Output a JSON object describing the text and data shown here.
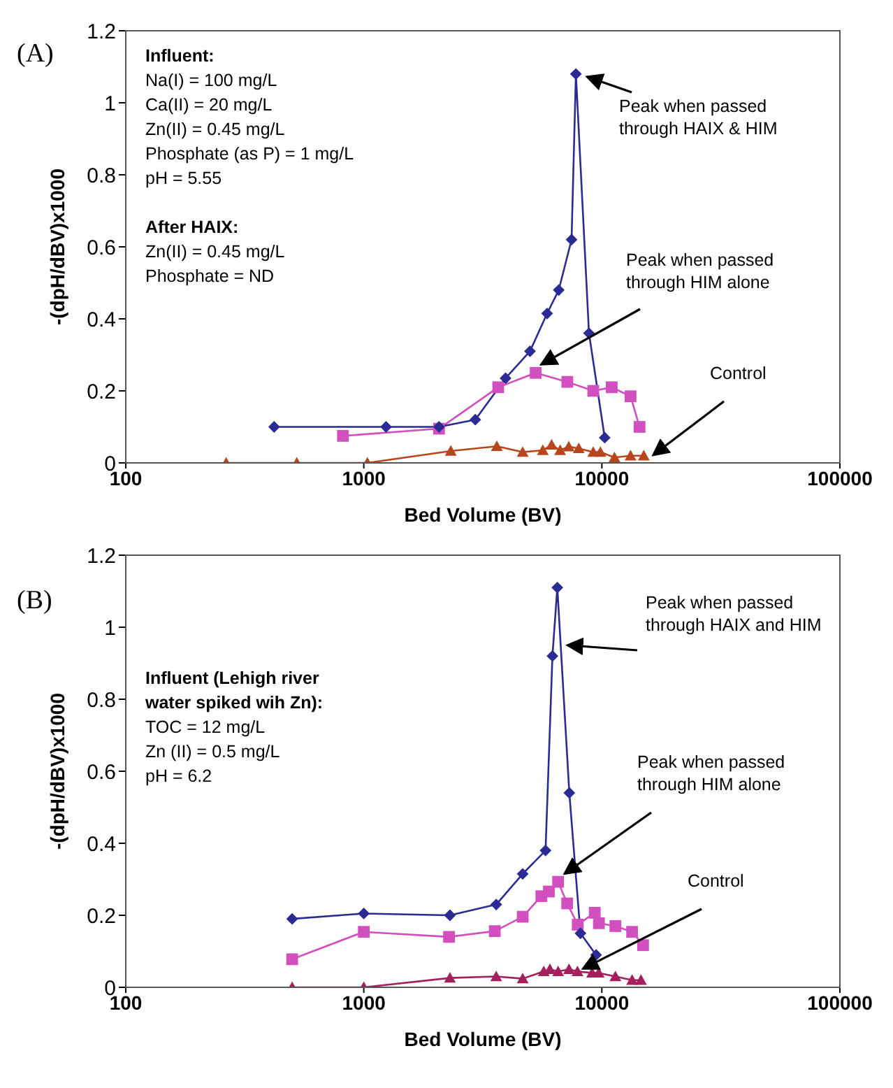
{
  "chart_data": [
    {
      "type": "line",
      "title": "(A)",
      "xlabel": "Bed Volume (BV)",
      "ylabel": "-(dpH/dBV)x1000",
      "log": "x",
      "grid": false,
      "legend": false,
      "xlim": [
        100,
        100000
      ],
      "xticks": [
        100,
        1000,
        10000,
        100000
      ],
      "ylim": [
        0,
        1.2
      ],
      "yticks": [
        0,
        0.2,
        0.4,
        0.6,
        0.8,
        1,
        1.2
      ],
      "annotations": [
        "Influent:\nNa(I) = 100 mg/L\nCa(II) = 20 mg/L\nZn(II) = 0.45 mg/L\nPhosphate (as P) = 1 mg/L\npH = 5.55\n\nAfter HAIX:\nZn(II) = 0.45 mg/L\nPhosphate = ND",
        {
          "text": "Peak when passed\nthrough HAIX & HIM",
          "x": 7780,
          "y": 1.08
        },
        {
          "text": "Peak when passed\nthrough HIM alone",
          "x": 5270,
          "y": 0.25
        },
        {
          "text": "Control",
          "x": 16000,
          "y": 0.01
        }
      ],
      "series": [
        {
          "color": "#2b2b94",
          "marker": "diamond",
          "x": [
            420,
            1240,
            2070,
            2940,
            3940,
            4990,
            5890,
            6590,
            7460,
            7780,
            8830,
            10280
          ],
          "values": [
            0.1,
            0.1,
            0.1,
            0.12,
            0.235,
            0.31,
            0.415,
            0.48,
            0.62,
            1.08,
            0.36,
            0.07
          ]
        },
        {
          "color": "#d24fc0",
          "marker": "square",
          "x": [
            817,
            2070,
            3670,
            5270,
            7160,
            9200,
            11000,
            13200,
            14400
          ],
          "values": [
            0.075,
            0.095,
            0.21,
            0.25,
            0.225,
            0.2,
            0.21,
            0.185,
            0.1
          ]
        },
        {
          "color": "#b8461c",
          "marker": "triangle",
          "x": [
            264,
            523,
            1035,
            2320,
            3620,
            4650,
            5650,
            6150,
            6680,
            7260,
            8000,
            9200,
            9860,
            11300,
            13200,
            15000
          ],
          "values": [
            0,
            0,
            0,
            0.033,
            0.046,
            0.03,
            0.035,
            0.05,
            0.035,
            0.045,
            0.04,
            0.03,
            0.03,
            0.015,
            0.02,
            0.02
          ]
        }
      ]
    },
    {
      "type": "line",
      "title": "(B)",
      "xlabel": "Bed Volume (BV)",
      "ylabel": "-(dpH/dBV)x1000",
      "log": "x",
      "grid": false,
      "legend": false,
      "xlim": [
        100,
        100000
      ],
      "xticks": [
        100,
        1000,
        10000,
        100000
      ],
      "ylim": [
        0,
        1.2
      ],
      "yticks": [
        0,
        0.2,
        0.4,
        0.6,
        0.8,
        1,
        1.2
      ],
      "annotations": [
        "Influent (Lehigh river\nwater spiked wih Zn):\nTOC = 12 mg/L\nZn (II) = 0.5 mg/L\npH = 6.2",
        {
          "text": "Peak when passed\nthrough HAIX and HIM",
          "x": 6800,
          "y": 0.95
        },
        {
          "text": "Peak when passed\nthrough HIM alone",
          "x": 6700,
          "y": 0.3
        },
        {
          "text": "Control",
          "x": 8000,
          "y": 0.04
        }
      ],
      "series": [
        {
          "color": "#2b2b94",
          "marker": "diamond",
          "x": [
            500,
            1000,
            2300,
            3600,
            4650,
            5800,
            6200,
            6500,
            7300,
            8130,
            9460
          ],
          "values": [
            0.19,
            0.205,
            0.2,
            0.23,
            0.315,
            0.38,
            0.92,
            1.11,
            0.54,
            0.15,
            0.09
          ]
        },
        {
          "color": "#d24fc0",
          "marker": "square",
          "x": [
            500,
            1000,
            2280,
            3550,
            4650,
            5570,
            5990,
            6550,
            7150,
            7920,
            9340,
            9720,
            11400,
            13400,
            14900
          ],
          "values": [
            0.078,
            0.154,
            0.14,
            0.156,
            0.196,
            0.253,
            0.266,
            0.293,
            0.233,
            0.174,
            0.207,
            0.178,
            0.17,
            0.154,
            0.117
          ]
        },
        {
          "color": "#a3205c",
          "marker": "triangle",
          "x": [
            500,
            1000,
            2300,
            3600,
            4650,
            5700,
            6050,
            6550,
            7280,
            7900,
            9100,
            9700,
            11400,
            13400,
            14600
          ],
          "values": [
            0,
            0,
            0.026,
            0.03,
            0.024,
            0.044,
            0.05,
            0.044,
            0.05,
            0.044,
            0.04,
            0.04,
            0.03,
            0.02,
            0.02
          ]
        }
      ]
    }
  ]
}
